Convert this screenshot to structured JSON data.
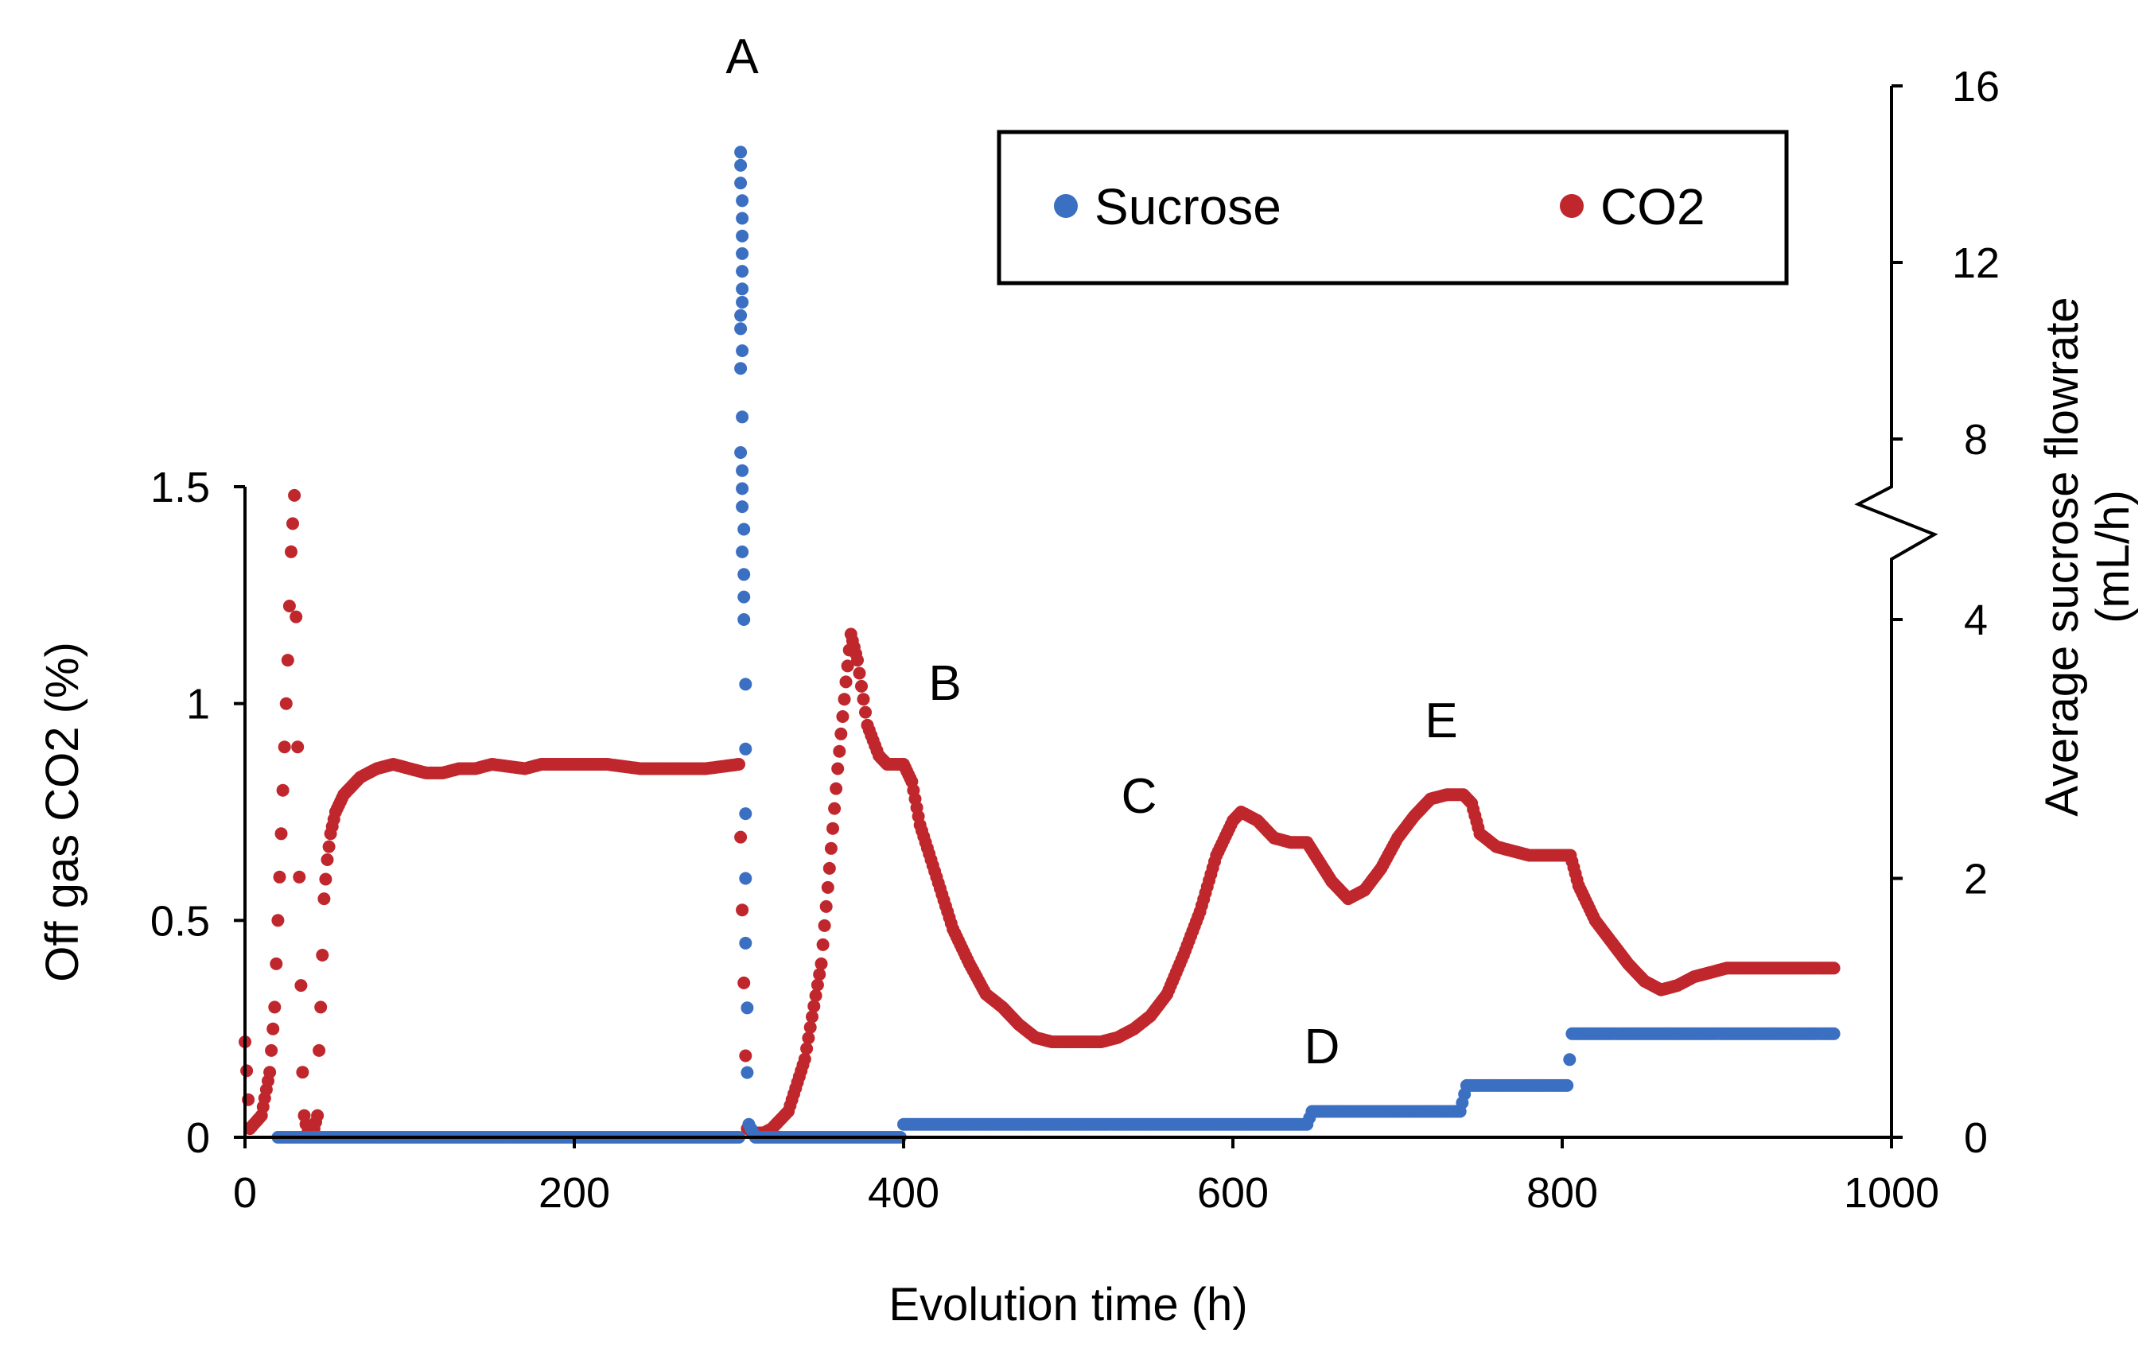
{
  "chart_data": {
    "type": "scatter",
    "title": "",
    "xlabel": "Evolution time (h)",
    "ylabel_left": "Off gas CO2 (%)",
    "ylabel_right": "Average sucrose flowrate (mL/h)",
    "ylabel_right_lines": [
      "Average sucrose flowrate",
      "(mL/h)"
    ],
    "xlim": [
      0,
      1000
    ],
    "ylim_left": [
      0,
      1.5
    ],
    "ylim_right": [
      0,
      16
    ],
    "right_axis_break": [
      4,
      7
    ],
    "x_ticks": [
      "0",
      "200",
      "400",
      "600",
      "800",
      "1000"
    ],
    "y_left_ticks": [
      "0",
      "0.5",
      "1",
      "1.5"
    ],
    "y_right_ticks": [
      "0",
      "2",
      "4",
      "8",
      "12",
      "16"
    ],
    "annotations": [
      "A",
      "B",
      "C",
      "D",
      "E"
    ],
    "legend": {
      "position": "top-right",
      "entries": [
        "Sucrose",
        "CO2"
      ]
    },
    "colors": {
      "sucrose": "#3B6FC2",
      "co2": "#C0272D"
    },
    "series": [
      {
        "name": "CO2",
        "axis": "left",
        "points": [
          [
            0,
            0.22
          ],
          [
            3,
            0.02
          ],
          [
            10,
            0.05
          ],
          [
            15,
            0.15
          ],
          [
            18,
            0.3
          ],
          [
            20,
            0.5
          ],
          [
            22,
            0.7
          ],
          [
            24,
            0.9
          ],
          [
            26,
            1.1
          ],
          [
            28,
            1.35
          ],
          [
            30,
            1.48
          ],
          [
            31,
            1.2
          ],
          [
            32,
            0.9
          ],
          [
            33,
            0.6
          ],
          [
            34,
            0.35
          ],
          [
            35,
            0.15
          ],
          [
            36,
            0.05
          ],
          [
            38,
            0.01
          ],
          [
            42,
            0.02
          ],
          [
            44,
            0.05
          ],
          [
            45,
            0.2
          ],
          [
            46,
            0.3
          ],
          [
            47,
            0.42
          ],
          [
            48,
            0.55
          ],
          [
            50,
            0.64
          ],
          [
            52,
            0.7
          ],
          [
            55,
            0.75
          ],
          [
            60,
            0.79
          ],
          [
            65,
            0.81
          ],
          [
            70,
            0.83
          ],
          [
            80,
            0.85
          ],
          [
            90,
            0.86
          ],
          [
            100,
            0.85
          ],
          [
            110,
            0.84
          ],
          [
            120,
            0.84
          ],
          [
            130,
            0.85
          ],
          [
            140,
            0.85
          ],
          [
            150,
            0.86
          ],
          [
            170,
            0.85
          ],
          [
            180,
            0.86
          ],
          [
            200,
            0.86
          ],
          [
            220,
            0.86
          ],
          [
            240,
            0.85
          ],
          [
            260,
            0.85
          ],
          [
            280,
            0.85
          ],
          [
            300,
            0.86
          ],
          [
            305,
            0.02
          ],
          [
            310,
            0.01
          ],
          [
            315,
            0.01
          ],
          [
            320,
            0.02
          ],
          [
            330,
            0.06
          ],
          [
            340,
            0.18
          ],
          [
            350,
            0.4
          ],
          [
            355,
            0.62
          ],
          [
            360,
            0.85
          ],
          [
            365,
            1.05
          ],
          [
            368,
            1.16
          ],
          [
            372,
            1.1
          ],
          [
            378,
            0.95
          ],
          [
            385,
            0.88
          ],
          [
            390,
            0.86
          ],
          [
            395,
            0.86
          ],
          [
            400,
            0.86
          ],
          [
            405,
            0.82
          ],
          [
            410,
            0.72
          ],
          [
            420,
            0.6
          ],
          [
            430,
            0.48
          ],
          [
            440,
            0.4
          ],
          [
            450,
            0.33
          ],
          [
            460,
            0.3
          ],
          [
            470,
            0.26
          ],
          [
            480,
            0.23
          ],
          [
            490,
            0.22
          ],
          [
            500,
            0.22
          ],
          [
            510,
            0.22
          ],
          [
            520,
            0.22
          ],
          [
            530,
            0.23
          ],
          [
            540,
            0.25
          ],
          [
            550,
            0.28
          ],
          [
            560,
            0.33
          ],
          [
            570,
            0.42
          ],
          [
            580,
            0.52
          ],
          [
            590,
            0.65
          ],
          [
            600,
            0.73
          ],
          [
            605,
            0.75
          ],
          [
            615,
            0.73
          ],
          [
            625,
            0.69
          ],
          [
            635,
            0.68
          ],
          [
            645,
            0.68
          ],
          [
            650,
            0.65
          ],
          [
            660,
            0.59
          ],
          [
            670,
            0.55
          ],
          [
            680,
            0.57
          ],
          [
            690,
            0.62
          ],
          [
            700,
            0.69
          ],
          [
            710,
            0.74
          ],
          [
            720,
            0.78
          ],
          [
            730,
            0.79
          ],
          [
            740,
            0.79
          ],
          [
            745,
            0.77
          ],
          [
            750,
            0.7
          ],
          [
            760,
            0.67
          ],
          [
            770,
            0.66
          ],
          [
            780,
            0.65
          ],
          [
            800,
            0.65
          ],
          [
            805,
            0.65
          ],
          [
            810,
            0.58
          ],
          [
            820,
            0.5
          ],
          [
            830,
            0.45
          ],
          [
            840,
            0.4
          ],
          [
            850,
            0.36
          ],
          [
            860,
            0.34
          ],
          [
            870,
            0.35
          ],
          [
            880,
            0.37
          ],
          [
            890,
            0.38
          ],
          [
            900,
            0.39
          ],
          [
            920,
            0.39
          ],
          [
            940,
            0.39
          ],
          [
            965,
            0.39
          ]
        ]
      },
      {
        "name": "Sucrose",
        "axis": "right",
        "points": [
          [
            20,
            0
          ],
          [
            100,
            0
          ],
          [
            200,
            0
          ],
          [
            290,
            0
          ],
          [
            300,
            0
          ],
          [
            301,
            14.5
          ],
          [
            301,
            14.2
          ],
          [
            301,
            13.8
          ],
          [
            302,
            13.4
          ],
          [
            302,
            13.0
          ],
          [
            302,
            12.6
          ],
          [
            302,
            12.2
          ],
          [
            302,
            11.8
          ],
          [
            302,
            11.4
          ],
          [
            302,
            11.1
          ],
          [
            301,
            10.8
          ],
          [
            301,
            10.5
          ],
          [
            302,
            10.0
          ],
          [
            301,
            9.6
          ],
          [
            302,
            8.5
          ],
          [
            301,
            7.7
          ],
          [
            302,
            7.3
          ],
          [
            302,
            6.9
          ],
          [
            302,
            6.5
          ],
          [
            303,
            6.0
          ],
          [
            302,
            5.5
          ],
          [
            303,
            5.0
          ],
          [
            303,
            4.5
          ],
          [
            303,
            4.0
          ],
          [
            304,
            3.5
          ],
          [
            304,
            3.0
          ],
          [
            304,
            2.5
          ],
          [
            304,
            2.0
          ],
          [
            304,
            1.5
          ],
          [
            305,
            1.0
          ],
          [
            305,
            0.5
          ],
          [
            306,
            0.1
          ],
          [
            310,
            0
          ],
          [
            350,
            0
          ],
          [
            398,
            0
          ],
          [
            400,
            0.1
          ],
          [
            500,
            0.1
          ],
          [
            600,
            0.1
          ],
          [
            645,
            0.1
          ],
          [
            648,
            0.2
          ],
          [
            700,
            0.2
          ],
          [
            738,
            0.2
          ],
          [
            742,
            0.4
          ],
          [
            780,
            0.4
          ],
          [
            803,
            0.4
          ],
          [
            806,
            0.8
          ],
          [
            850,
            0.8
          ],
          [
            900,
            0.8
          ],
          [
            965,
            0.8
          ]
        ]
      }
    ]
  }
}
